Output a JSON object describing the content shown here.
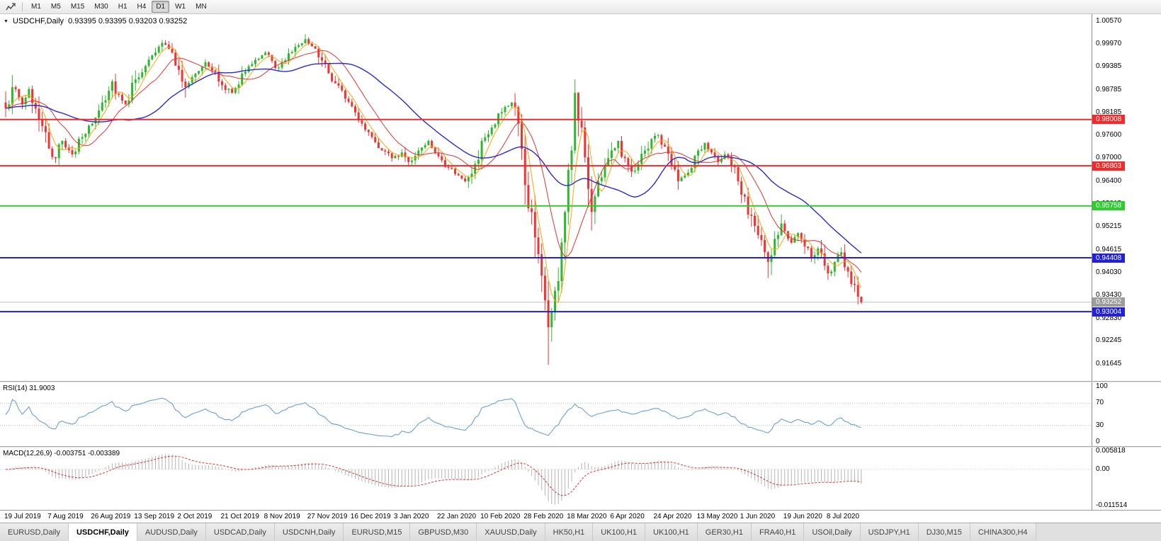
{
  "toolbar": {
    "timeframes": [
      "M1",
      "M5",
      "M15",
      "M30",
      "H1",
      "H4",
      "D1",
      "W1",
      "MN"
    ],
    "active_timeframe": "D1"
  },
  "chart": {
    "header": {
      "title": "USDCHF,Daily",
      "ohlc": "0.93395 0.93395 0.93203 0.93252"
    },
    "y_ticks": [
      "1.00570",
      "0.99970",
      "0.99385",
      "0.98785",
      "0.98185",
      "0.97600",
      "0.97000",
      "0.96400",
      "0.95815",
      "0.95215",
      "0.94615",
      "0.94030",
      "0.93430",
      "0.92830",
      "0.92245",
      "0.91645"
    ],
    "x_dates": [
      "19 Jul 2019",
      "7 Aug 2019",
      "26 Aug 2019",
      "13 Sep 2019",
      "2 Oct 2019",
      "21 Oct 2019",
      "8 Nov 2019",
      "27 Nov 2019",
      "16 Dec 2019",
      "3 Jan 2020",
      "22 Jan 2020",
      "10 Feb 2020",
      "28 Feb 2020",
      "18 Mar 2020",
      "6 Apr 2020",
      "24 Apr 2020",
      "13 May 2020",
      "1 Jun 2020",
      "19 Jun 2020",
      "8 Jul 2020"
    ],
    "current_price": {
      "label": "0.93252",
      "value": 0.93252,
      "color": "#9c9c9c"
    }
  },
  "rsi": {
    "name": "RSI(14)",
    "value": "31.9003",
    "scale_labels": [
      "100",
      "70",
      "30",
      "0"
    ],
    "scale_values": [
      100,
      70,
      30,
      0
    ],
    "levels": [
      70,
      30
    ],
    "color": "#69a0d2"
  },
  "macd": {
    "name": "MACD(12,26,9)",
    "value_macd": "-0.003751",
    "value_signal": "-0.003389",
    "scale_labels": [
      "0.005818",
      "0.00",
      "-0.011514"
    ],
    "scale_max": 0.005818,
    "scale_min": -0.011514,
    "histogram_color": "#b4b4b4",
    "signal_color": "#e03030"
  },
  "tabs": {
    "items": [
      "EURUSD,Daily",
      "USDCHF,Daily",
      "AUDUSD,Daily",
      "USDCAD,Daily",
      "USDCNH,Daily",
      "EURUSD,M15",
      "GBPUSD,M30",
      "XAUUSD,Daily",
      "HK50,H1",
      "UK100,H1",
      "UK100,H1",
      "GER30,H1",
      "FRA40,H1",
      "USOil,Daily",
      "USDJPY,H1",
      "DJ30,M15",
      "CHINA300,H4"
    ],
    "active_index": 1
  },
  "chart_data": {
    "type": "candlestick",
    "symbol": "USDCHF",
    "period": "Daily",
    "last_candle": {
      "open": 0.93395,
      "high": 0.93395,
      "low": 0.93203,
      "close": 0.93252
    },
    "price_axis": {
      "max": 1.0075,
      "min": 0.912
    },
    "time_axis": {
      "total_bars": 258,
      "bars_per_label": 13
    },
    "horizontal_lines": [
      {
        "label": "0.98008",
        "price": 0.98008,
        "color": "#f42a2a",
        "width": 2
      },
      {
        "label": "0.96803",
        "price": 0.96803,
        "color": "#f42a2a",
        "width": 2
      },
      {
        "label": "0.95758",
        "price": 0.95758,
        "color": "#2fcc2f",
        "width": 2
      },
      {
        "label": "0.94408",
        "price": 0.94408,
        "color": "#2020dd",
        "width": 2
      },
      {
        "label": "0.93004",
        "price": 0.93004,
        "color": "#2020dd",
        "width": 2
      }
    ],
    "moving_averages": [
      {
        "period": 5,
        "color": "#ffa500",
        "width": 1
      },
      {
        "period": 13,
        "color": "#e23333",
        "width": 1
      },
      {
        "period": 34,
        "color": "#2929d6",
        "width": 1.4
      }
    ],
    "colors": {
      "up": "#2db82d",
      "down": "#ef3434"
    },
    "close_anchors": [
      [
        0,
        0.983
      ],
      [
        2,
        0.9885
      ],
      [
        5,
        0.984
      ],
      [
        7,
        0.988
      ],
      [
        10,
        0.98
      ],
      [
        13,
        0.9725
      ],
      [
        15,
        0.97
      ],
      [
        17,
        0.9745
      ],
      [
        20,
        0.971
      ],
      [
        23,
        0.9755
      ],
      [
        26,
        0.979
      ],
      [
        29,
        0.9845
      ],
      [
        32,
        0.99
      ],
      [
        34,
        0.9865
      ],
      [
        36,
        0.984
      ],
      [
        39,
        0.9905
      ],
      [
        42,
        0.994
      ],
      [
        45,
        0.9975
      ],
      [
        47,
        1.0
      ],
      [
        49,
        0.9985
      ],
      [
        52,
        0.993
      ],
      [
        54,
        0.9885
      ],
      [
        57,
        0.992
      ],
      [
        60,
        0.995
      ],
      [
        63,
        0.9925
      ],
      [
        65,
        0.989
      ],
      [
        68,
        0.987
      ],
      [
        71,
        0.992
      ],
      [
        74,
        0.9945
      ],
      [
        78,
        0.9975
      ],
      [
        81,
        0.9935
      ],
      [
        84,
        0.9955
      ],
      [
        87,
        0.999
      ],
      [
        90,
        1.001
      ],
      [
        93,
        0.9985
      ],
      [
        96,
        0.9945
      ],
      [
        99,
        0.9895
      ],
      [
        102,
        0.9855
      ],
      [
        104,
        0.9835
      ],
      [
        107,
        0.979
      ],
      [
        110,
        0.9755
      ],
      [
        113,
        0.972
      ],
      [
        116,
        0.97
      ],
      [
        119,
        0.9715
      ],
      [
        121,
        0.969
      ],
      [
        124,
        0.972
      ],
      [
        127,
        0.9745
      ],
      [
        130,
        0.9705
      ],
      [
        133,
        0.9675
      ],
      [
        136,
        0.9655
      ],
      [
        138,
        0.964
      ],
      [
        141,
        0.9685
      ],
      [
        143,
        0.9745
      ],
      [
        146,
        0.978
      ],
      [
        149,
        0.982
      ],
      [
        152,
        0.9845
      ],
      [
        154,
        0.979
      ],
      [
        156,
        0.963
      ],
      [
        158,
        0.956
      ],
      [
        160,
        0.945
      ],
      [
        162,
        0.933
      ],
      [
        163,
        0.926
      ],
      [
        164,
        0.93
      ],
      [
        166,
        0.938
      ],
      [
        168,
        0.956
      ],
      [
        170,
        0.972
      ],
      [
        171,
        0.987
      ],
      [
        173,
        0.978
      ],
      [
        175,
        0.962
      ],
      [
        176,
        0.956
      ],
      [
        178,
        0.964
      ],
      [
        180,
        0.968
      ],
      [
        182,
        0.972
      ],
      [
        184,
        0.9745
      ],
      [
        186,
        0.97
      ],
      [
        188,
        0.9665
      ],
      [
        190,
        0.9685
      ],
      [
        192,
        0.972
      ],
      [
        194,
        0.975
      ],
      [
        196,
        0.976
      ],
      [
        198,
        0.973
      ],
      [
        200,
        0.968
      ],
      [
        202,
        0.964
      ],
      [
        204,
        0.9655
      ],
      [
        206,
        0.9675
      ],
      [
        208,
        0.972
      ],
      [
        210,
        0.974
      ],
      [
        212,
        0.9715
      ],
      [
        214,
        0.969
      ],
      [
        216,
        0.971
      ],
      [
        218,
        0.968
      ],
      [
        220,
        0.964
      ],
      [
        222,
        0.96
      ],
      [
        224,
        0.955
      ],
      [
        226,
        0.95
      ],
      [
        228,
        0.9455
      ],
      [
        229,
        0.943
      ],
      [
        231,
        0.949
      ],
      [
        233,
        0.953
      ],
      [
        234,
        0.951
      ],
      [
        236,
        0.948
      ],
      [
        238,
        0.9505
      ],
      [
        240,
        0.947
      ],
      [
        242,
        0.944
      ],
      [
        244,
        0.9465
      ],
      [
        246,
        0.942
      ],
      [
        247,
        0.94
      ],
      [
        249,
        0.943
      ],
      [
        251,
        0.9455
      ],
      [
        253,
        0.9405
      ],
      [
        255,
        0.937
      ],
      [
        256,
        0.93395
      ],
      [
        257,
        0.93252
      ]
    ],
    "wick_overrides": [
      {
        "day": 15,
        "low": 0.9693
      },
      {
        "day": 47,
        "high": 1.0008
      },
      {
        "day": 90,
        "high": 1.0023
      },
      {
        "day": 163,
        "low": 0.9162
      },
      {
        "day": 171,
        "high": 0.9905
      },
      {
        "day": 229,
        "low": 0.9388
      },
      {
        "day": 251,
        "high": 0.9468
      }
    ],
    "indicators": [
      {
        "name": "RSI",
        "period": 14,
        "current": 31.9003,
        "range": [
          0,
          100
        ],
        "levels": [
          70,
          30
        ]
      },
      {
        "name": "MACD",
        "fast": 12,
        "slow": 26,
        "signal": 9,
        "current_macd": -0.003751,
        "current_signal": -0.003389
      }
    ]
  }
}
